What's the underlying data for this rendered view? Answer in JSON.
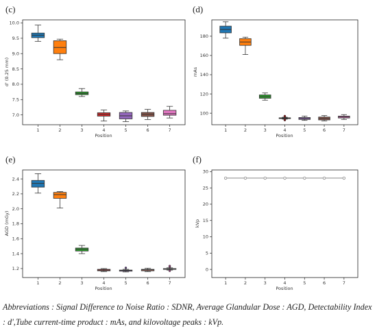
{
  "chart_data": [
    {
      "type": "box",
      "panel_label": "(c)",
      "xlabel": "Position",
      "ylabel": "d' (0.25 mm)",
      "ylim": [
        6.68,
        10.1
      ],
      "yticks": [
        "7.0",
        "7.5",
        "8.0",
        "8.5",
        "9.0",
        "9.5",
        "10.0"
      ],
      "yticks_values": [
        7.0,
        7.5,
        8.0,
        8.5,
        9.0,
        9.5,
        10.0
      ],
      "categories": [
        "1",
        "2",
        "3",
        "4",
        "5",
        "6",
        "7"
      ],
      "boxes": [
        {
          "min": 9.4,
          "q1": 9.52,
          "median": 9.6,
          "q3": 9.67,
          "max": 9.93
        },
        {
          "min": 8.8,
          "q1": 9.0,
          "median": 9.2,
          "q3": 9.42,
          "max": 9.47
        },
        {
          "min": 7.6,
          "q1": 7.66,
          "median": 7.7,
          "q3": 7.75,
          "max": 7.86
        },
        {
          "min": 6.8,
          "q1": 6.96,
          "median": 7.02,
          "q3": 7.07,
          "max": 7.16
        },
        {
          "min": 6.78,
          "q1": 6.87,
          "median": 6.97,
          "q3": 7.08,
          "max": 7.13
        },
        {
          "min": 6.85,
          "q1": 6.95,
          "median": 7.02,
          "q3": 7.08,
          "max": 7.18
        },
        {
          "min": 6.9,
          "q1": 6.99,
          "median": 7.04,
          "q3": 7.15,
          "max": 7.28
        }
      ],
      "outliers": [
        [],
        [],
        [],
        [],
        [],
        [],
        []
      ]
    },
    {
      "type": "box",
      "panel_label": "(d)",
      "xlabel": "Position",
      "ylabel": "mAs",
      "ylim": [
        88,
        197
      ],
      "yticks": [
        "100",
        "120",
        "140",
        "160",
        "180"
      ],
      "yticks_values": [
        100,
        120,
        140,
        160,
        180
      ],
      "categories": [
        "1",
        "2",
        "3",
        "4",
        "5",
        "6",
        "7"
      ],
      "boxes": [
        {
          "min": 178,
          "q1": 183.5,
          "median": 187,
          "q3": 190.5,
          "max": 195
        },
        {
          "min": 161,
          "q1": 170.5,
          "median": 174,
          "q3": 177.5,
          "max": 179
        },
        {
          "min": 113.5,
          "q1": 115.5,
          "median": 117,
          "q3": 119,
          "max": 121
        },
        {
          "min": 93.8,
          "q1": 94.4,
          "median": 94.8,
          "q3": 95.2,
          "max": 95.8
        },
        {
          "min": 92.5,
          "q1": 93.5,
          "median": 94.5,
          "q3": 95.5,
          "max": 97
        },
        {
          "min": 92,
          "q1": 93,
          "median": 94.5,
          "q3": 96,
          "max": 97.5
        },
        {
          "min": 93.5,
          "q1": 95,
          "median": 96,
          "q3": 97,
          "max": 98.5
        }
      ],
      "outliers": [
        [],
        [],
        [],
        [
          92.8,
          93.2,
          96.5,
          97
        ],
        [],
        [],
        []
      ]
    },
    {
      "type": "box",
      "panel_label": "(e)",
      "xlabel": "Position",
      "ylabel": "AGD (mGy)",
      "ylim": [
        1.08,
        2.52
      ],
      "yticks": [
        "1.2",
        "1.4",
        "1.6",
        "1.8",
        "2.0",
        "2.2",
        "2.4"
      ],
      "yticks_values": [
        1.2,
        1.4,
        1.6,
        1.8,
        2.0,
        2.2,
        2.4
      ],
      "categories": [
        "1",
        "2",
        "3",
        "4",
        "5",
        "6",
        "7"
      ],
      "boxes": [
        {
          "min": 2.21,
          "q1": 2.29,
          "median": 2.34,
          "q3": 2.38,
          "max": 2.47
        },
        {
          "min": 2.01,
          "q1": 2.14,
          "median": 2.19,
          "q3": 2.22,
          "max": 2.23
        },
        {
          "min": 1.4,
          "q1": 1.435,
          "median": 1.46,
          "q3": 1.475,
          "max": 1.51
        },
        {
          "min": 1.16,
          "q1": 1.17,
          "median": 1.18,
          "q3": 1.19,
          "max": 1.2
        },
        {
          "min": 1.155,
          "q1": 1.165,
          "median": 1.175,
          "q3": 1.18,
          "max": 1.19
        },
        {
          "min": 1.16,
          "q1": 1.17,
          "median": 1.185,
          "q3": 1.19,
          "max": 1.205
        },
        {
          "min": 1.18,
          "q1": 1.19,
          "median": 1.195,
          "q3": 1.2,
          "max": 1.21
        }
      ],
      "outliers": [
        [],
        [],
        [],
        [],
        [
          1.21
        ],
        [],
        [
          1.225,
          1.235,
          1.17
        ]
      ]
    },
    {
      "type": "line",
      "panel_label": "(f)",
      "xlabel": "Position",
      "ylabel": "kVp",
      "ylim": [
        -2.5,
        30.5
      ],
      "yticks": [
        "0",
        "5",
        "10",
        "15",
        "20",
        "25",
        "30"
      ],
      "yticks_values": [
        0,
        5,
        10,
        15,
        20,
        25,
        30
      ],
      "x": [
        "1",
        "2",
        "3",
        "4",
        "5",
        "6",
        "7"
      ],
      "values": [
        28,
        28,
        28,
        28,
        28,
        28,
        28
      ]
    }
  ],
  "colors": {
    "pos1": "#1f77b4",
    "pos2": "#ff7f0e",
    "pos3": "#2ca02c",
    "pos4": "#d62728",
    "pos5": "#9467bd",
    "pos6": "#8c564b",
    "pos7": "#e377c2",
    "line": "#888888",
    "axis": "#222222"
  },
  "caption": {
    "text": "Abbreviations : Signal Difference to Noise Ratio : SDNR, Average Glandular Dose : AGD, Detectability Index : d',Tube current-time product : mAs, and kilovoltage peaks : kVp."
  }
}
